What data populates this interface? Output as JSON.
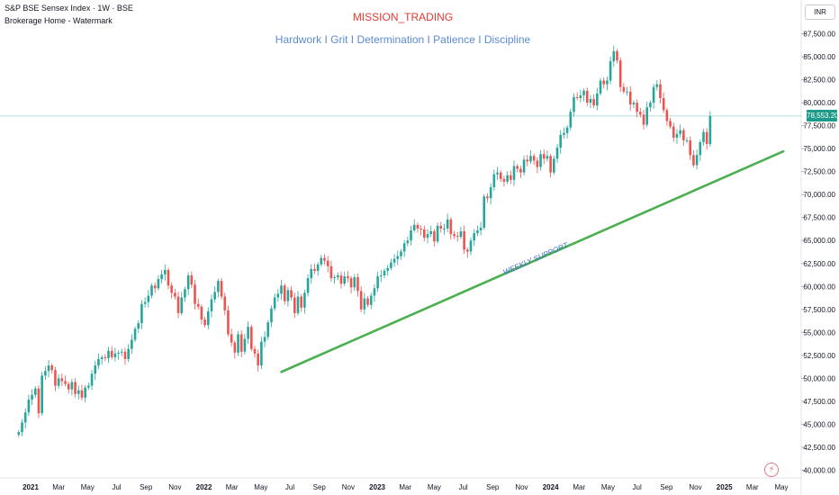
{
  "header": {
    "title": "S&P BSE Sensex Index · 1W · BSE",
    "subtitle": "Brokerage Home - Watermark"
  },
  "watermark": {
    "line1": "MISSION_TRADING",
    "line2": "Hardwork I Grit I Determination I Patience I Discipline",
    "line1_color": "#e53935",
    "line2_color": "#5b8bd6"
  },
  "currency": "INR",
  "last_price_label": "78,553.20",
  "bolt_icon": "lightning-icon",
  "colors": {
    "up": "#26a69a",
    "down": "#ef5350",
    "support": "#4caf50",
    "annotation": "#3f6fd1",
    "price_line": "#26a69a"
  },
  "chart_data": {
    "type": "candlestick",
    "y_axis": {
      "min": 40000,
      "max": 89000,
      "ticks": [
        40000,
        42500,
        45000,
        47500,
        50000,
        52500,
        55000,
        57500,
        60000,
        62500,
        65000,
        67500,
        70000,
        72500,
        75000,
        77500,
        80000,
        82500,
        85000,
        87500
      ],
      "tick_labels": [
        "40,000.00",
        "42,500.00",
        "45,000.00",
        "47,500.00",
        "50,000.00",
        "52,500.00",
        "55,000.00",
        "57,500.00",
        "60,000.00",
        "62,500.00",
        "65,000.00",
        "67,500.00",
        "70,000.00",
        "72,500.00",
        "75,000.00",
        "77,500.00",
        "80,000.00",
        "82,500.00",
        "85,000.00",
        "87,500.00"
      ]
    },
    "x_axis": {
      "labels": [
        {
          "text": "2021",
          "date": "2021-01-01"
        },
        {
          "text": "Mar",
          "date": "2021-03-01"
        },
        {
          "text": "May",
          "date": "2021-05-01"
        },
        {
          "text": "Jul",
          "date": "2021-07-01"
        },
        {
          "text": "Sep",
          "date": "2021-09-01"
        },
        {
          "text": "Nov",
          "date": "2021-11-01"
        },
        {
          "text": "2022",
          "date": "2022-01-01"
        },
        {
          "text": "Mar",
          "date": "2022-03-01"
        },
        {
          "text": "May",
          "date": "2022-05-01"
        },
        {
          "text": "Jul",
          "date": "2022-07-01"
        },
        {
          "text": "Sep",
          "date": "2022-09-01"
        },
        {
          "text": "Nov",
          "date": "2022-11-01"
        },
        {
          "text": "2023",
          "date": "2023-01-01"
        },
        {
          "text": "Mar",
          "date": "2023-03-01"
        },
        {
          "text": "May",
          "date": "2023-05-01"
        },
        {
          "text": "Jul",
          "date": "2023-07-01"
        },
        {
          "text": "Sep",
          "date": "2023-09-01"
        },
        {
          "text": "Nov",
          "date": "2023-11-01"
        },
        {
          "text": "2024",
          "date": "2024-01-01"
        },
        {
          "text": "Mar",
          "date": "2024-03-01"
        },
        {
          "text": "May",
          "date": "2024-05-01"
        },
        {
          "text": "Jul",
          "date": "2024-07-01"
        },
        {
          "text": "Sep",
          "date": "2024-09-01"
        },
        {
          "text": "Nov",
          "date": "2024-11-01"
        },
        {
          "text": "2025",
          "date": "2025-01-01"
        },
        {
          "text": "Mar",
          "date": "2025-03-01"
        },
        {
          "text": "May",
          "date": "2025-05-01"
        }
      ],
      "bold_labels": [
        "2021",
        "2022",
        "2023",
        "2024",
        "2025"
      ]
    },
    "first_week": "2020-12-07",
    "closes": [
      44150,
      45200,
      46300,
      47700,
      48200,
      48900,
      46200,
      50300,
      50800,
      51400,
      50900,
      49200,
      50000,
      49700,
      49400,
      48800,
      49600,
      48300,
      48700,
      47900,
      49000,
      49200,
      50500,
      51400,
      52100,
      52300,
      52200,
      53000,
      52300,
      52700,
      52800,
      52900,
      52100,
      53200,
      54200,
      55400,
      56000,
      58100,
      58300,
      59000,
      60100,
      59800,
      60800,
      61300,
      61800,
      60100,
      59300,
      58900,
      57100,
      58800,
      59700,
      61200,
      60200,
      58100,
      57800,
      56400,
      55800,
      57300,
      58600,
      59400,
      60600,
      58900,
      57400,
      54800,
      53900,
      52800,
      54800,
      52900,
      54300,
      55600,
      53200,
      52700,
      51400,
      54000,
      54500,
      56100,
      57600,
      58800,
      59200,
      60100,
      58400,
      59600,
      58800,
      57100,
      58900,
      57700,
      59300,
      60900,
      61900,
      61700,
      62400,
      63100,
      62800,
      62200,
      60900,
      61000,
      61200,
      60300,
      61100,
      60900,
      59900,
      61000,
      59500,
      57500,
      58700,
      58000,
      59000,
      59800,
      61100,
      61200,
      61700,
      62000,
      62600,
      63000,
      63300,
      63800,
      64700,
      65000,
      66100,
      66700,
      66300,
      66200,
      65300,
      65700,
      66000,
      64900,
      66600,
      66300,
      66300,
      67300,
      65700,
      65500,
      65400,
      66000,
      64000,
      63800,
      65000,
      65800,
      66100,
      66400,
      69800,
      69600,
      70800,
      72200,
      72400,
      71700,
      71400,
      72100,
      71600,
      73100,
      72800,
      72400,
      73800,
      73600,
      74200,
      73700,
      73000,
      74400,
      73900,
      74200,
      72400,
      73900,
      75100,
      76500,
      76700,
      77300,
      79000,
      80600,
      80500,
      80800,
      81300,
      80000,
      80400,
      79700,
      81000,
      82400,
      82000,
      82400,
      84500,
      85600,
      84600,
      81700,
      81200,
      81200,
      79800,
      80000,
      79000,
      78700,
      77600,
      79500,
      80000,
      81700,
      82000,
      80500,
      79200,
      78000,
      77400,
      76200,
      76600,
      77000,
      75900,
      75900,
      74300,
      73200,
      74300,
      75700,
      76800,
      75500,
      78550
    ],
    "last_price": 78553.2,
    "horizontal_line": 78553.2,
    "trendline": {
      "start": {
        "date": "2022-06-13",
        "value": 50700
      },
      "end": {
        "date": "2025-05-05",
        "value": 74700
      },
      "label": "WEEKLY SUPPORT"
    }
  }
}
